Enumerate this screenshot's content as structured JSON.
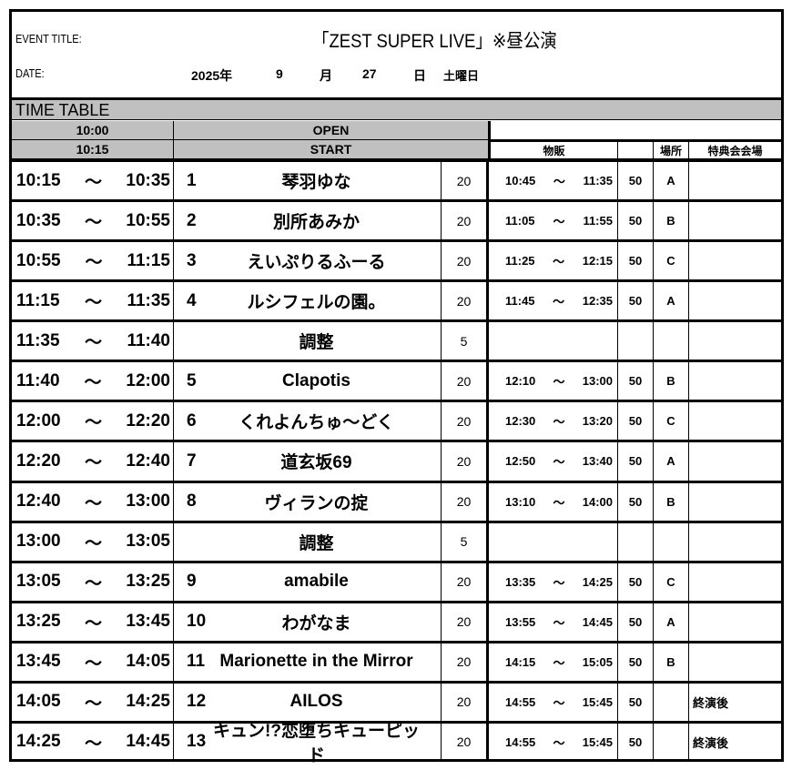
{
  "header": {
    "event_label": "EVENT TITLE:",
    "event_title": "「ZEST SUPER LIVE」※昼公演",
    "date_label": "DATE:",
    "year": "2025年",
    "month": "9",
    "month_unit": "月",
    "day": "27",
    "day_unit": "日",
    "weekday": "土曜日"
  },
  "timetable": {
    "title": "TIME TABLE",
    "open_time": "10:00",
    "open_label": "OPEN",
    "start_time": "10:15",
    "start_label": "START",
    "merch_header": "物販",
    "place_header": "場所",
    "venue_header": "特典会会場",
    "tilde": "～"
  },
  "rows": [
    {
      "start": "10:15",
      "end": "10:35",
      "no": "1",
      "name": "琴羽ゆな",
      "dur": "20",
      "ms": "10:45",
      "me": "11:35",
      "mq": "50",
      "place": "A",
      "venue": ""
    },
    {
      "start": "10:35",
      "end": "10:55",
      "no": "2",
      "name": "別所あみか",
      "dur": "20",
      "ms": "11:05",
      "me": "11:55",
      "mq": "50",
      "place": "B",
      "venue": ""
    },
    {
      "start": "10:55",
      "end": "11:15",
      "no": "3",
      "name": "えいぷりるふーる",
      "dur": "20",
      "ms": "11:25",
      "me": "12:15",
      "mq": "50",
      "place": "C",
      "venue": ""
    },
    {
      "start": "11:15",
      "end": "11:35",
      "no": "4",
      "name": "ルシフェルの園。",
      "dur": "20",
      "ms": "11:45",
      "me": "12:35",
      "mq": "50",
      "place": "A",
      "venue": ""
    },
    {
      "start": "11:35",
      "end": "11:40",
      "no": "",
      "name": "調整",
      "dur": "5",
      "ms": "",
      "me": "",
      "mq": "",
      "place": "",
      "venue": ""
    },
    {
      "start": "11:40",
      "end": "12:00",
      "no": "5",
      "name": "Clapotis",
      "dur": "20",
      "ms": "12:10",
      "me": "13:00",
      "mq": "50",
      "place": "B",
      "venue": ""
    },
    {
      "start": "12:00",
      "end": "12:20",
      "no": "6",
      "name": "くれよんちゅ～どく",
      "dur": "20",
      "ms": "12:30",
      "me": "13:20",
      "mq": "50",
      "place": "C",
      "venue": ""
    },
    {
      "start": "12:20",
      "end": "12:40",
      "no": "7",
      "name": "道玄坂69",
      "dur": "20",
      "ms": "12:50",
      "me": "13:40",
      "mq": "50",
      "place": "A",
      "venue": ""
    },
    {
      "start": "12:40",
      "end": "13:00",
      "no": "8",
      "name": "ヴィランの掟",
      "dur": "20",
      "ms": "13:10",
      "me": "14:00",
      "mq": "50",
      "place": "B",
      "venue": ""
    },
    {
      "start": "13:00",
      "end": "13:05",
      "no": "",
      "name": "調整",
      "dur": "5",
      "ms": "",
      "me": "",
      "mq": "",
      "place": "",
      "venue": ""
    },
    {
      "start": "13:05",
      "end": "13:25",
      "no": "9",
      "name": "amabile",
      "dur": "20",
      "ms": "13:35",
      "me": "14:25",
      "mq": "50",
      "place": "C",
      "venue": ""
    },
    {
      "start": "13:25",
      "end": "13:45",
      "no": "10",
      "name": "わがなま",
      "dur": "20",
      "ms": "13:55",
      "me": "14:45",
      "mq": "50",
      "place": "A",
      "venue": ""
    },
    {
      "start": "13:45",
      "end": "14:05",
      "no": "11",
      "name": "Marionette in the Mirror",
      "dur": "20",
      "ms": "14:15",
      "me": "15:05",
      "mq": "50",
      "place": "B",
      "venue": ""
    },
    {
      "start": "14:05",
      "end": "14:25",
      "no": "12",
      "name": "AILOS",
      "dur": "20",
      "ms": "14:55",
      "me": "15:45",
      "mq": "50",
      "place": "",
      "venue": "終演後"
    },
    {
      "start": "14:25",
      "end": "14:45",
      "no": "13",
      "name": "キュン!?恋堕ちキューピッド",
      "dur": "20",
      "ms": "14:55",
      "me": "15:45",
      "mq": "50",
      "place": "",
      "venue": "終演後"
    }
  ]
}
